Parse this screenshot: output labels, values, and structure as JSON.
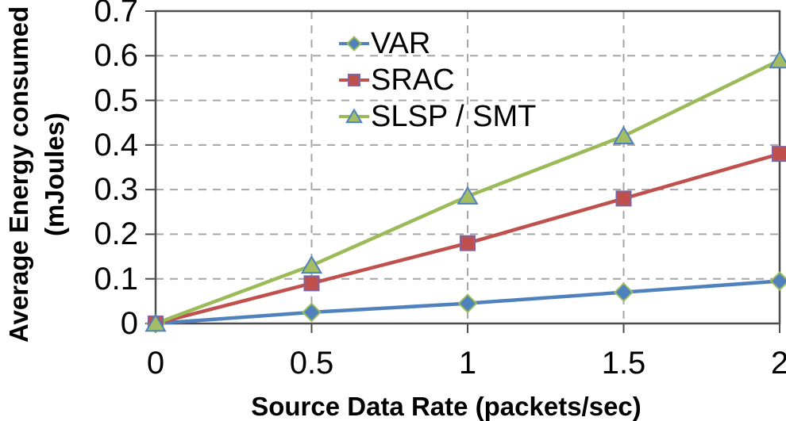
{
  "chart_data": {
    "type": "line",
    "title": "",
    "xlabel": "Source Data Rate (packets/sec)",
    "ylabel": "Average Energy consumed (mJoules)",
    "ylabel_lines": [
      "Average Energy consumed",
      "(mJoules)"
    ],
    "xlim": [
      0,
      2
    ],
    "ylim": [
      0,
      0.7
    ],
    "xticks": [
      0,
      0.5,
      1,
      1.5,
      2
    ],
    "xtick_labels": [
      "0",
      "0.5",
      "1",
      "1.5",
      "2"
    ],
    "yticks": [
      0,
      0.1,
      0.2,
      0.3,
      0.4,
      0.5,
      0.6,
      0.7
    ],
    "ytick_labels": [
      "0",
      "0.1",
      "0.2",
      "0.3",
      "0.4",
      "0.5",
      "0.6",
      "0.7"
    ],
    "grid": true,
    "legend_position": "top-center-inside",
    "x": [
      0,
      0.5,
      1,
      1.5,
      2
    ],
    "series": [
      {
        "name": "VAR",
        "values": [
          0,
          0.025,
          0.045,
          0.07,
          0.095
        ],
        "color": "#4F81BD",
        "marker": "diamond",
        "marker_fill": "#4F81BD",
        "marker_stroke": "#9BBB59"
      },
      {
        "name": "SRAC",
        "values": [
          0,
          0.09,
          0.18,
          0.28,
          0.38
        ],
        "color": "#C0504D",
        "marker": "square",
        "marker_fill": "#C0504D",
        "marker_stroke": "#8064A2"
      },
      {
        "name": "SLSP / SMT",
        "values": [
          0,
          0.13,
          0.285,
          0.42,
          0.59
        ],
        "color": "#9BBB59",
        "marker": "triangle",
        "marker_fill": "#A2BD64",
        "marker_stroke": "#4F81BD"
      }
    ],
    "styles": {
      "gridline_color": "#A6A6A6",
      "axis_color": "#4D4D4D",
      "text_color": "#000000",
      "background": "#FFFFFF"
    }
  }
}
